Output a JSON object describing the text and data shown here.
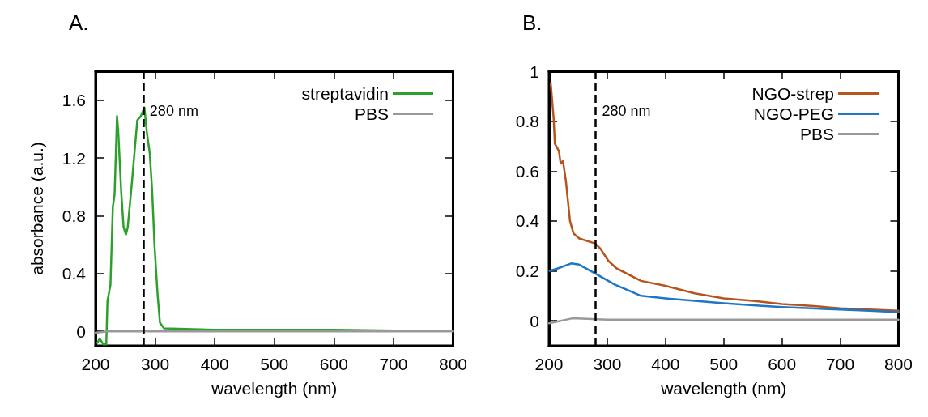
{
  "chart_data": [
    {
      "type": "line",
      "title": "A.",
      "xlabel": "wavelength (nm)",
      "ylabel": "absorbance (a.u.)",
      "xlim": [
        200,
        800
      ],
      "xticks": [
        200,
        300,
        400,
        500,
        600,
        700,
        800
      ],
      "ylim": [
        -0.1,
        1.8
      ],
      "yticks": [
        0,
        0.4,
        0.8,
        1.2,
        1.6
      ],
      "grid": false,
      "legend": "top right",
      "marker": "none",
      "line_style": "solid",
      "ref_lines": [
        {
          "axis": "x",
          "value": 280,
          "label": "280 nm",
          "color": "#000000",
          "line_style": "dashed"
        }
      ],
      "series": [
        {
          "name": "streptavidin",
          "color": "#2ca02c",
          "x": [
            203,
            207,
            213,
            218,
            220,
            225,
            229,
            232,
            236,
            238,
            243,
            247,
            251,
            254,
            261,
            270,
            276,
            282,
            286,
            291,
            295,
            299,
            304,
            308,
            315,
            400,
            500,
            600,
            700,
            800
          ],
          "values": [
            -0.08,
            -0.05,
            -0.09,
            -0.09,
            0.21,
            0.32,
            0.86,
            0.95,
            1.49,
            1.39,
            0.97,
            0.72,
            0.67,
            0.72,
            1.03,
            1.46,
            1.49,
            1.55,
            1.38,
            1.23,
            0.97,
            0.59,
            0.26,
            0.06,
            0.02,
            0.01,
            0.01,
            0.01,
            0.005,
            0.005
          ]
        },
        {
          "name": "PBS",
          "color": "#999999",
          "x": [
            200,
            220,
            300,
            400,
            500,
            600,
            700,
            800
          ],
          "values": [
            -0.01,
            0,
            0,
            0,
            0,
            0,
            0,
            0
          ]
        }
      ]
    },
    {
      "type": "line",
      "title": "B.",
      "xlabel": "wavelength (nm)",
      "xlim": [
        200,
        800
      ],
      "xticks": [
        200,
        300,
        400,
        500,
        600,
        700,
        800
      ],
      "ylim": [
        -0.1,
        1
      ],
      "yticks": [
        0,
        0.2,
        0.4,
        0.6,
        0.8,
        1
      ],
      "grid": false,
      "legend": "top right",
      "marker": "none",
      "line_style": "solid",
      "ref_lines": [
        {
          "axis": "x",
          "value": 280,
          "label": "280 nm",
          "color": "#000000",
          "line_style": "dashed"
        }
      ],
      "series": [
        {
          "name": "NGO-strep",
          "color": "#b5541c",
          "x": [
            203,
            208,
            210,
            217,
            220,
            224,
            229,
            236,
            242,
            252,
            279,
            288,
            302,
            316,
            358,
            400,
            450,
            500,
            550,
            600,
            650,
            700,
            750,
            800
          ],
          "values": [
            0.95,
            0.81,
            0.71,
            0.68,
            0.63,
            0.64,
            0.56,
            0.4,
            0.35,
            0.33,
            0.31,
            0.29,
            0.24,
            0.21,
            0.16,
            0.14,
            0.11,
            0.09,
            0.08,
            0.067,
            0.06,
            0.05,
            0.045,
            0.04
          ]
        },
        {
          "name": "NGO-PEG",
          "color": "#1f77c4",
          "x": [
            201,
            215,
            238,
            252,
            279,
            312,
            358,
            400,
            450,
            500,
            550,
            600,
            650,
            700,
            750,
            800
          ],
          "values": [
            0.2,
            0.21,
            0.23,
            0.225,
            0.19,
            0.146,
            0.1,
            0.09,
            0.08,
            0.07,
            0.062,
            0.055,
            0.05,
            0.045,
            0.04,
            0.035
          ]
        },
        {
          "name": "PBS",
          "color": "#999999",
          "x": [
            200,
            210,
            240,
            300,
            400,
            500,
            600,
            700,
            800
          ],
          "values": [
            -0.01,
            -0.005,
            0.01,
            0.005,
            0.005,
            0.005,
            0.005,
            0.005,
            0.005
          ]
        }
      ]
    }
  ]
}
